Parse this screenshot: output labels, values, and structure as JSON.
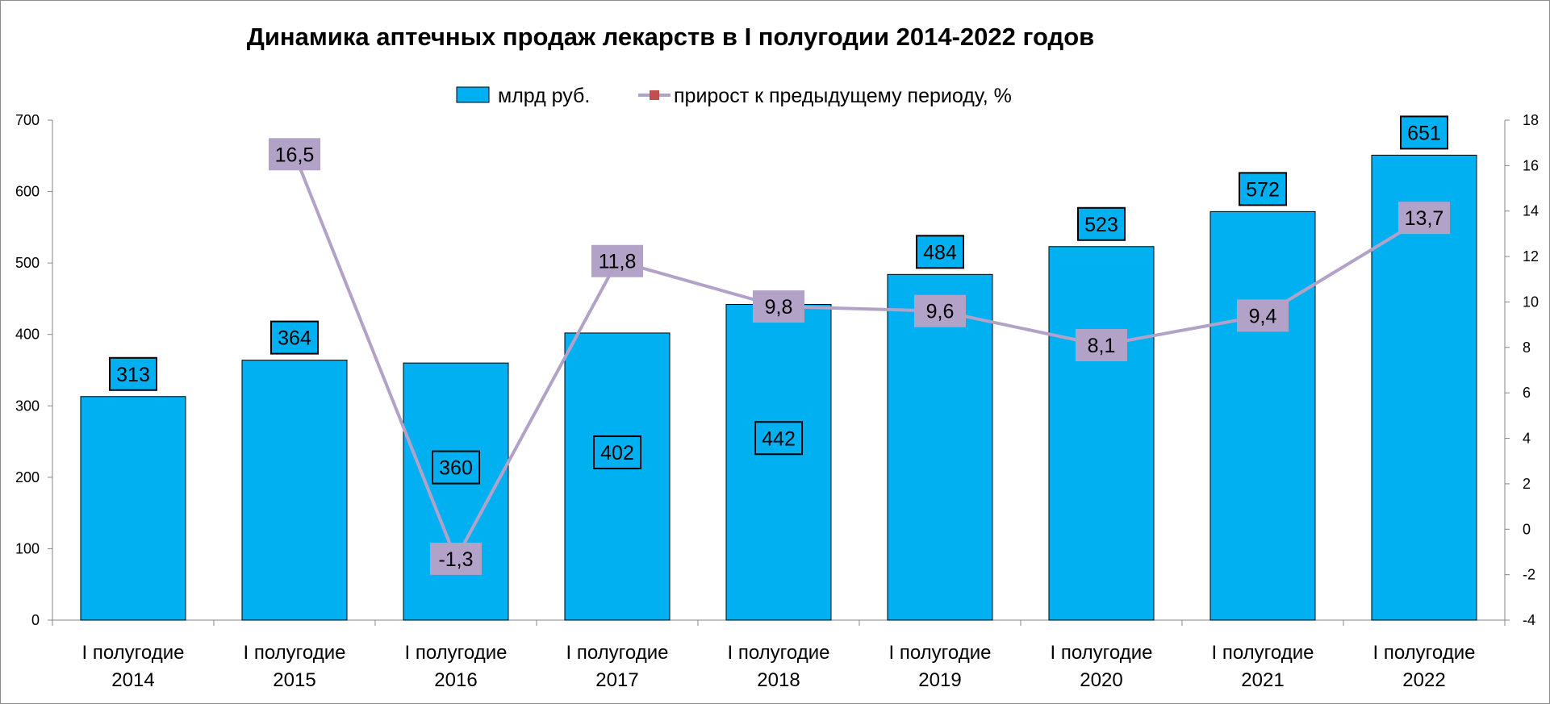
{
  "chart_data": {
    "type": "bar",
    "title": "Динамика аптечных продаж лекарств в I полугодии 2014-2022 годов",
    "categories": [
      [
        "I полугодие",
        "2014"
      ],
      [
        "I полугодие",
        "2015"
      ],
      [
        "I полугодие",
        "2016"
      ],
      [
        "I полугодие",
        "2017"
      ],
      [
        "I полугодие",
        "2018"
      ],
      [
        "I полугодие",
        "2019"
      ],
      [
        "I полугодие",
        "2020"
      ],
      [
        "I полугодие",
        "2021"
      ],
      [
        "I полугодие",
        "2022"
      ]
    ],
    "series": [
      {
        "name": "млрд руб.",
        "kind": "bar",
        "axis": "left",
        "color": "#00B0F0",
        "values": [
          313,
          364,
          360,
          402,
          442,
          484,
          523,
          572,
          651
        ],
        "labels": [
          "313",
          "364",
          "360",
          "402",
          "442",
          "484",
          "523",
          "572",
          "651"
        ],
        "label_inside": [
          false,
          false,
          true,
          true,
          true,
          false,
          false,
          false,
          false
        ]
      },
      {
        "name": "прирост к предыдущему периоду, %",
        "kind": "line",
        "axis": "right",
        "color": "#B3A2C7",
        "marker_color": "#C0504D",
        "label_bg": "#B3A2C7",
        "values": [
          null,
          16.5,
          -1.3,
          11.8,
          9.8,
          9.6,
          8.1,
          9.4,
          13.7
        ],
        "labels": [
          "",
          "16,5",
          "-1,3",
          "11,8",
          "9,8",
          "9,6",
          "8,1",
          "9,4",
          "13,7"
        ]
      }
    ],
    "y_left": {
      "min": 0,
      "max": 700,
      "step": 100,
      "ticks": [
        "0",
        "100",
        "200",
        "300",
        "400",
        "500",
        "600",
        "700"
      ]
    },
    "y_right": {
      "min": -4,
      "max": 18,
      "step": 2,
      "ticks": [
        "-4",
        "-2",
        "0",
        "2",
        "4",
        "6",
        "8",
        "10",
        "12",
        "14",
        "16",
        "18"
      ]
    },
    "legend_position": "top-center",
    "grid": false
  }
}
